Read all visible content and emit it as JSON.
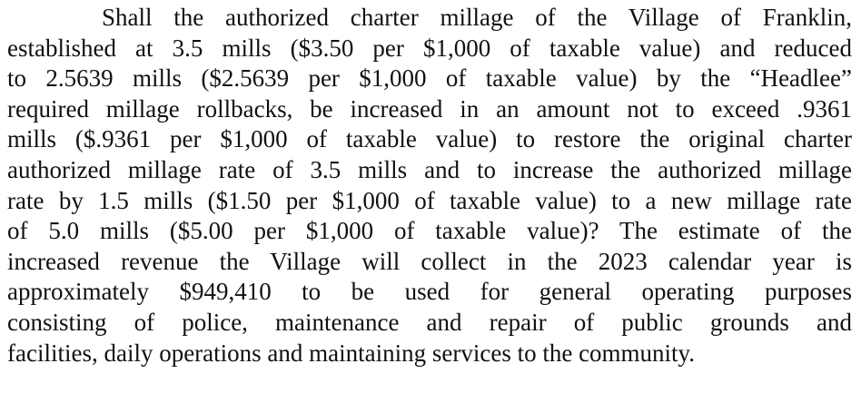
{
  "paragraph": {
    "lines": [
      "Shall the authorized charter millage of the Village of Franklin,",
      "established at 3.5 mills ($3.50 per $1,000 of taxable value) and reduced",
      "to 2.5639 mills ($2.5639 per $1,000 of taxable value) by the “Headlee”",
      "required millage rollbacks, be increased in an amount not to exceed .9361",
      "mills ($.9361 per $1,000 of taxable value) to restore the original charter",
      "authorized millage rate of 3.5 mills and to increase the authorized millage",
      "rate by 1.5 mills ($1.50 per $1,000 of taxable value) to a new millage rate",
      "of 5.0 mills ($5.00 per $1,000 of taxable value)?  The estimate of the",
      "increased revenue the Village will collect in the 2023 calendar year is",
      "approximately $949,410 to be used for general operating purposes",
      "consisting of police, maintenance and repair of public grounds and",
      "facilities, daily operations and maintaining services to the community."
    ]
  }
}
